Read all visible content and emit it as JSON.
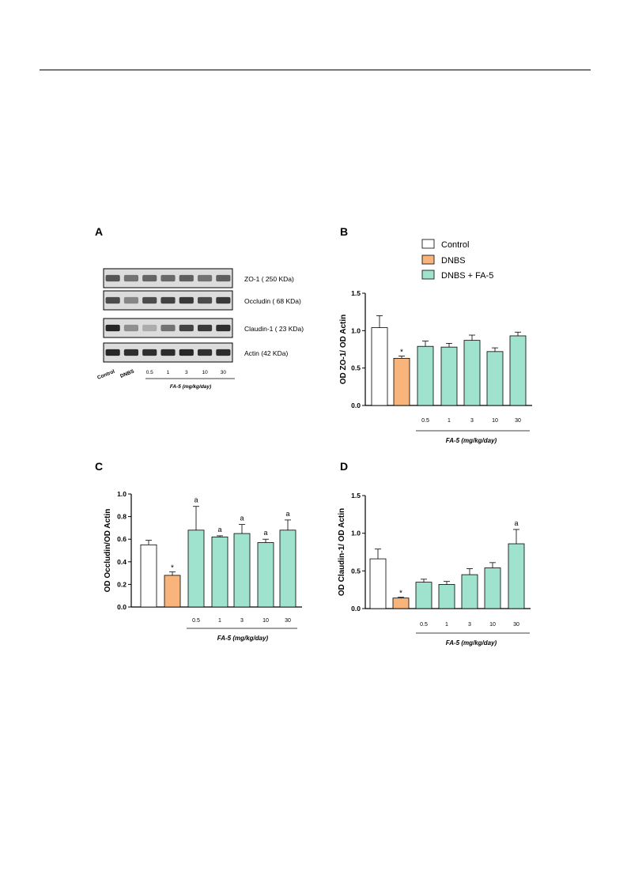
{
  "panels": {
    "a": "A",
    "b": "B",
    "c": "C",
    "d": "D"
  },
  "colors": {
    "control": "#ffffff",
    "dnbs": "#f8b47a",
    "fa5": "#9fe3cf",
    "blot_bg": "#dcdcdc",
    "band": "#1c1c1c"
  },
  "blot": {
    "rows": [
      {
        "label": "ZO-1 ( 250 KDa)",
        "intensity": [
          0.7,
          0.55,
          0.62,
          0.6,
          0.65,
          0.55,
          0.65
        ]
      },
      {
        "label": "Occludin ( 68 KDa)",
        "intensity": [
          0.75,
          0.45,
          0.75,
          0.8,
          0.85,
          0.75,
          0.85
        ]
      },
      {
        "label": "Claudin-1 ( 23 KDa)",
        "intensity": [
          0.95,
          0.4,
          0.25,
          0.55,
          0.8,
          0.85,
          0.9
        ]
      },
      {
        "label": "Actin (42 KDa)",
        "intensity": [
          0.95,
          0.9,
          0.9,
          0.92,
          0.95,
          0.9,
          0.92
        ]
      }
    ],
    "lanes": [
      "Control",
      "DNBS",
      "0.5",
      "1",
      "3",
      "10",
      "30"
    ],
    "dose_label": "FA-5 (mg/kg/day)"
  },
  "legend": {
    "items": [
      {
        "label": "Control",
        "color": "#ffffff"
      },
      {
        "label": "DNBS",
        "color": "#f8b47a"
      },
      {
        "label": "DNBS + FA-5",
        "color": "#9fe3cf"
      }
    ]
  },
  "chart_data": [
    {
      "panel": "B",
      "type": "bar",
      "ylabel": "OD ZO-1/ OD Actin",
      "xlabel": "FA-5 (mg/kg/day)",
      "ylim": [
        0,
        1.5
      ],
      "yticks": [
        "0.0",
        "0.5",
        "1.0",
        "1.5"
      ],
      "categories": [
        "",
        "",
        "0.5",
        "1",
        "3",
        "10",
        "30"
      ],
      "values": [
        1.04,
        0.63,
        0.79,
        0.78,
        0.87,
        0.72,
        0.93
      ],
      "errors": [
        0.16,
        0.03,
        0.07,
        0.05,
        0.07,
        0.05,
        0.05
      ],
      "annotations": [
        "",
        "*",
        "",
        "",
        "",
        "",
        ""
      ]
    },
    {
      "panel": "C",
      "type": "bar",
      "ylabel": "OD Occludin/OD Actin",
      "xlabel": "FA-5 (mg/kg/day)",
      "ylim": [
        0,
        1.0
      ],
      "yticks": [
        "0.0",
        "0.2",
        "0.4",
        "0.6",
        "0.8",
        "1.0"
      ],
      "categories": [
        "",
        "",
        "0.5",
        "1",
        "3",
        "10",
        "30"
      ],
      "values": [
        0.55,
        0.28,
        0.68,
        0.62,
        0.65,
        0.57,
        0.68
      ],
      "errors": [
        0.04,
        0.03,
        0.21,
        0.01,
        0.08,
        0.03,
        0.09
      ],
      "annotations": [
        "",
        "*",
        "a",
        "a",
        "a",
        "a",
        "a"
      ]
    },
    {
      "panel": "D",
      "type": "bar",
      "ylabel": "OD Claudin-1/ OD Actin",
      "xlabel": "FA-5 (mg/kg/day)",
      "ylim": [
        0,
        1.5
      ],
      "yticks": [
        "0.0",
        "0.5",
        "1.0",
        "1.5"
      ],
      "categories": [
        "",
        "",
        "0.5",
        "1",
        "3",
        "10",
        "30"
      ],
      "values": [
        0.66,
        0.14,
        0.35,
        0.32,
        0.45,
        0.54,
        0.86
      ],
      "errors": [
        0.13,
        0.01,
        0.04,
        0.04,
        0.08,
        0.07,
        0.19
      ],
      "annotations": [
        "",
        "*",
        "",
        "",
        "",
        "",
        "a"
      ]
    }
  ]
}
